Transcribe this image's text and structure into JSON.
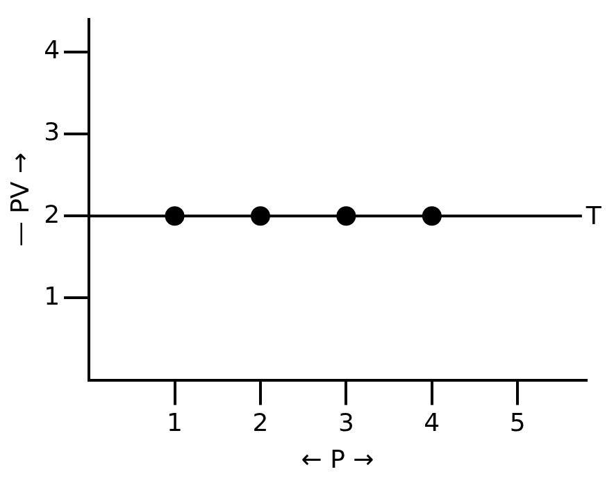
{
  "chart_data": {
    "type": "line",
    "x_label": "← P →",
    "y_label": "— PV →",
    "series": [
      {
        "name": "T",
        "type": "line",
        "marker": "none",
        "color": "#000000",
        "x": [
          0,
          5.75
        ],
        "values": [
          2,
          2
        ]
      },
      {
        "type": "scatter",
        "marker": "circle",
        "color": "#000000",
        "x": [
          1,
          2,
          3,
          4
        ],
        "values": [
          2,
          2,
          2,
          2
        ]
      }
    ],
    "xlim": [
      0,
      5.8
    ],
    "xticks": [
      1,
      2,
      3,
      4,
      5
    ],
    "ylim": [
      0,
      4.4
    ],
    "yticks": [
      1,
      2,
      3,
      4
    ],
    "grid": false
  }
}
